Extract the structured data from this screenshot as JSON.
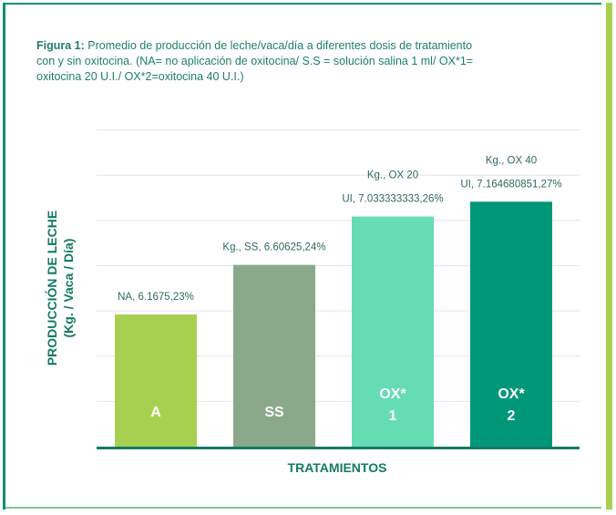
{
  "caption": {
    "figure_label": "Figura 1:",
    "text": " Promedio de  producción de leche/vaca/día a diferentes dosis de tratamiento con y sin oxitocina. (NA= no aplicación de oxitocina/ S.S = solución salina 1 ml/ OX*1= oxitocina 20 U.I./ OX*2=oxitocina 40 U.I.)"
  },
  "chart_data": {
    "type": "bar",
    "title": "Figura 1: Promedio de  producción de leche/vaca/día a diferentes dosis de tratamiento con y sin oxitocina. (NA= no aplicación de oxitocina/ S.S = solución salina 1 ml/ OX*1= oxitocina 20 U.I./ OX*2=oxitocina 40 U.I.)",
    "xlabel": "TRATAMIENTOS",
    "ylabel": [
      "PRODUCCIÓN DE LECHE",
      "(Kg. / Vaca / Día)"
    ],
    "ylim": [
      5,
      7.9
    ],
    "gridlines": [
      5.4,
      5.8,
      6.2,
      6.6,
      7.0,
      7.4,
      7.8
    ],
    "grid": true,
    "legend": "none",
    "categories": [
      "A",
      "SS",
      "OX* 1",
      "OX* 2"
    ],
    "bars": [
      {
        "name_lines": [
          "A"
        ],
        "value": 6.1675,
        "color": "#a8d050",
        "data_label": [
          "NA, 6.1675,23%"
        ]
      },
      {
        "name_lines": [
          "SS"
        ],
        "value": 6.60625,
        "color": "#8aa98b",
        "data_label": [
          "Kg., SS, 6.60625,24%"
        ]
      },
      {
        "name_lines": [
          "OX*",
          "1"
        ],
        "value": 7.033333333,
        "color": "#66dcb4",
        "data_label": [
          "Kg., OX 20",
          "UI, 7.033333333,26%"
        ]
      },
      {
        "name_lines": [
          "OX*",
          "2"
        ],
        "value": 7.164680851,
        "color": "#009779",
        "data_label": [
          "Kg., OX 40",
          "UI, 7.164680851,27%"
        ]
      }
    ],
    "colors": {
      "axis": "#137a63",
      "grid": "#e4e4e4",
      "label": "#2d6a58",
      "frame_left": "#0b8f74",
      "frame_right": "#a8d050"
    }
  }
}
